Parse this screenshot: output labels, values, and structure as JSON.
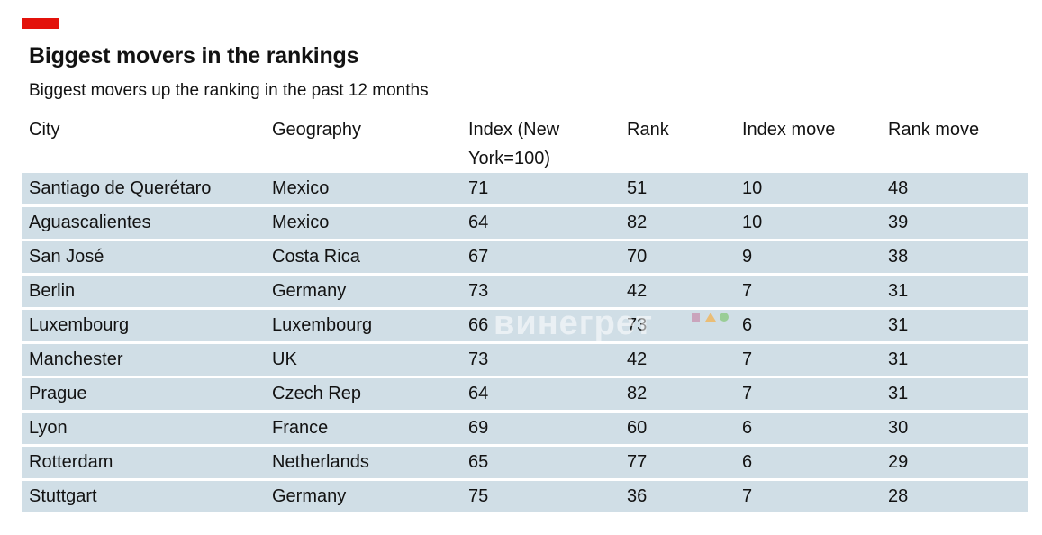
{
  "header": {
    "title": "Biggest movers in the rankings",
    "subtitle": "Biggest movers up the ranking in the past 12 months"
  },
  "colors": {
    "accent": "#e3120b",
    "row_background": "#d0dee6",
    "text": "#121212"
  },
  "watermark": {
    "text": "винегрет"
  },
  "chart_data": {
    "type": "table",
    "title": "Biggest movers in the rankings",
    "subtitle": "Biggest movers up the ranking in the past 12 months",
    "columns": [
      "City",
      "Geography",
      "Index (New York=100)",
      "Rank",
      "Index move",
      "Rank move"
    ],
    "rows": [
      [
        "Santiago de Querétaro",
        "Mexico",
        "71",
        "51",
        "10",
        "48"
      ],
      [
        "Aguascalientes",
        "Mexico",
        "64",
        "82",
        "10",
        "39"
      ],
      [
        "San José",
        "Costa Rica",
        "67",
        "70",
        "9",
        "38"
      ],
      [
        "Berlin",
        "Germany",
        "73",
        "42",
        "7",
        "31"
      ],
      [
        "Luxembourg",
        "Luxembourg",
        "66",
        "73",
        "6",
        "31"
      ],
      [
        "Manchester",
        "UK",
        "73",
        "42",
        "7",
        "31"
      ],
      [
        "Prague",
        "Czech Rep",
        "64",
        "82",
        "7",
        "31"
      ],
      [
        "Lyon",
        "France",
        "69",
        "60",
        "6",
        "30"
      ],
      [
        "Rotterdam",
        "Netherlands",
        "65",
        "77",
        "6",
        "29"
      ],
      [
        "Stuttgart",
        "Germany",
        "75",
        "36",
        "7",
        "28"
      ]
    ]
  }
}
